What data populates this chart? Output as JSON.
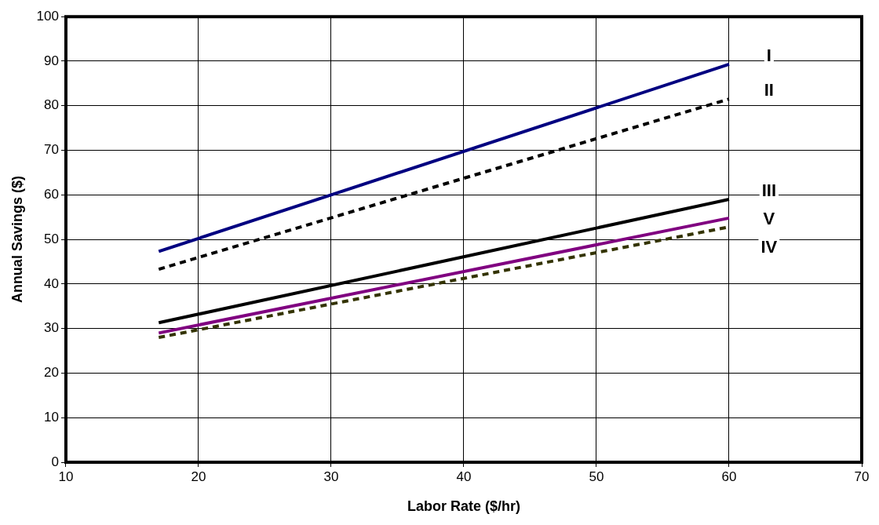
{
  "chart_data": {
    "type": "line",
    "xlabel": "Labor Rate ($/hr)",
    "ylabel": "Annual Savings ($)",
    "xlim": [
      10,
      70
    ],
    "xticks": [
      10,
      20,
      30,
      40,
      50,
      60,
      70
    ],
    "ylim": [
      0,
      100
    ],
    "yticks": [
      0,
      10,
      20,
      30,
      40,
      50,
      60,
      70,
      80,
      90,
      100
    ],
    "grid": true,
    "legend": false,
    "marker": "none",
    "x": [
      17,
      60
    ],
    "series": [
      {
        "name": "I",
        "color": "#000080",
        "line_style": "solid",
        "values": [
          47.3,
          89.3
        ]
      },
      {
        "name": "II",
        "color": "#000000",
        "line_style": "dashed",
        "values": [
          43.3,
          81.5
        ]
      },
      {
        "name": "III",
        "color": "#000000",
        "line_style": "solid",
        "values": [
          31.3,
          59
        ]
      },
      {
        "name": "V",
        "color": "#800080",
        "line_style": "solid",
        "values": [
          29,
          54.8
        ]
      },
      {
        "name": "IV",
        "color": "#333300",
        "line_style": "dashed",
        "values": [
          28,
          52.8
        ]
      }
    ]
  }
}
